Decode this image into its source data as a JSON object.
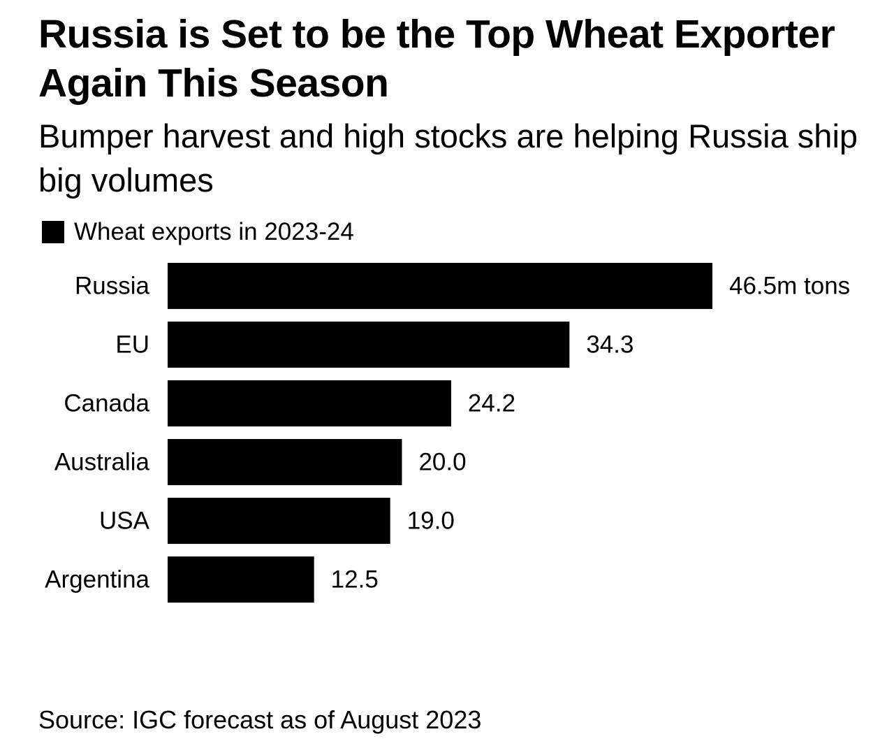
{
  "colors": {
    "bar": "#000000",
    "text": "#000000",
    "background": "#ffffff"
  },
  "chart_data": {
    "type": "bar",
    "orientation": "horizontal",
    "title": "Russia is Set to be the Top Wheat Exporter Again This Season",
    "subtitle": "Bumper harvest and high stocks are helping Russia ship big volumes",
    "legend": [
      "Wheat exports in 2023-24"
    ],
    "legend_position": "top-left",
    "categories": [
      "Russia",
      "EU",
      "Canada",
      "Australia",
      "USA",
      "Argentina"
    ],
    "values": [
      46.5,
      34.3,
      24.2,
      20.0,
      19.0,
      12.5
    ],
    "value_labels": [
      "46.5m tons",
      "34.3",
      "24.2",
      "20.0",
      "19.0",
      "12.5"
    ],
    "unit": "m tons",
    "xlim": [
      0,
      46.5
    ],
    "grid": false,
    "source": "Source: IGC forecast as of August 2023"
  }
}
